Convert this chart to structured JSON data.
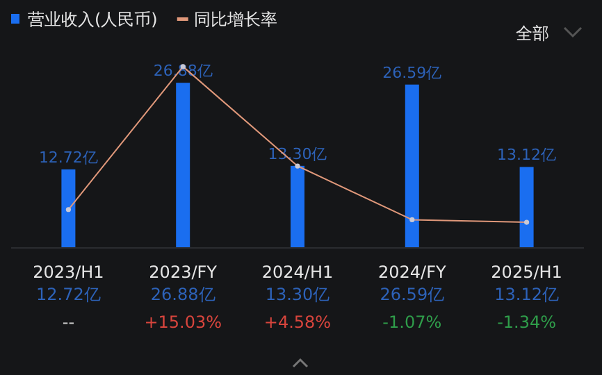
{
  "chart_data": {
    "type": "bar",
    "categories": [
      "2023/H1",
      "2023/FY",
      "2024/H1",
      "2024/FY",
      "2025/H1"
    ],
    "series": [
      {
        "name": "营业收入(人民币)",
        "color": "#1a6ef0",
        "values": [
          12.72,
          26.88,
          13.3,
          26.59,
          13.12
        ],
        "value_labels": [
          "12.72亿",
          "26.88亿",
          "13.30亿",
          "26.59亿",
          "13.12亿"
        ]
      },
      {
        "name": "同比增长率",
        "type": "line",
        "axis": "y2",
        "color": "#e0987a",
        "marker": "circle",
        "values": [
          0,
          15.03,
          4.58,
          -1.07,
          -1.34
        ],
        "value_labels": [
          "--",
          "+15.03%",
          "+4.58%",
          "-1.07%",
          "-1.34%"
        ]
      }
    ],
    "grid": false,
    "legend": "top left",
    "annotations": [
      "全部"
    ]
  }
}
